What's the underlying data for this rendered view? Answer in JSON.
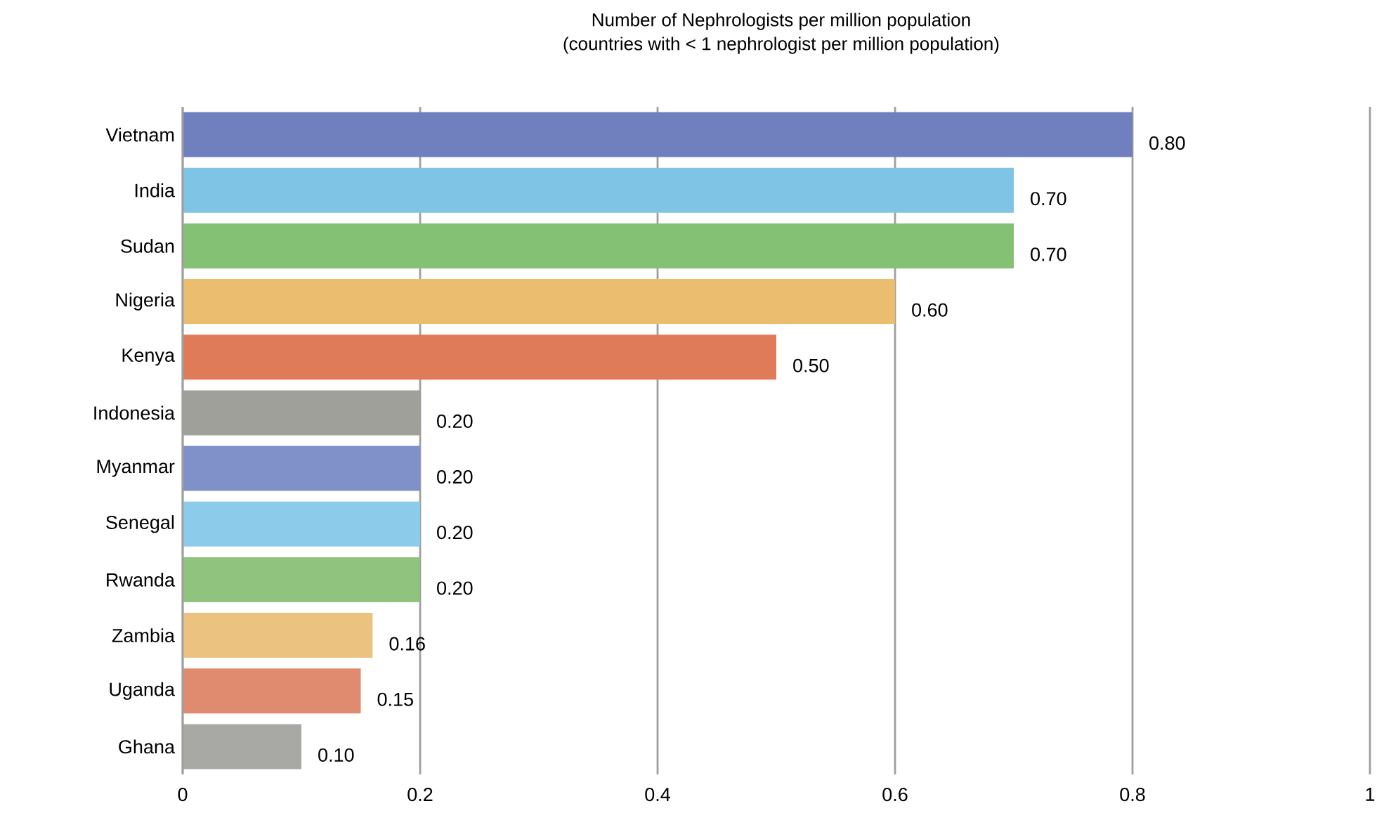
{
  "chart_data": {
    "type": "bar",
    "orientation": "horizontal",
    "title": "Number of Nephrologists per million population\n(countries with < 1 nephrologist per million population)",
    "categories": [
      "Vietnam",
      "India",
      "Sudan",
      "Nigeria",
      "Kenya",
      "Indonesia",
      "Myanmar",
      "Senegal",
      "Rwanda",
      "Zambia",
      "Uganda",
      "Ghana"
    ],
    "values": [
      0.8,
      0.7,
      0.7,
      0.6,
      0.5,
      0.2,
      0.2,
      0.2,
      0.2,
      0.16,
      0.15,
      0.1
    ],
    "value_labels": [
      "0.80",
      "0.70",
      "0.70",
      "0.60",
      "0.50",
      "0.20",
      "0.20",
      "0.20",
      "0.20",
      "0.16",
      "0.15",
      "0.10"
    ],
    "colors": [
      "#7080be",
      "#7fc3e5",
      "#85c174",
      "#ebbd6f",
      "#e07b5a",
      "#a0a09a",
      "#8090c8",
      "#8ccbea",
      "#90c47e",
      "#ecc281",
      "#e08a70",
      "#a8a8a4"
    ],
    "xlim": [
      0,
      1
    ],
    "xticks": [
      0,
      0.2,
      0.4,
      0.6,
      0.8,
      1
    ],
    "grid": "x"
  }
}
